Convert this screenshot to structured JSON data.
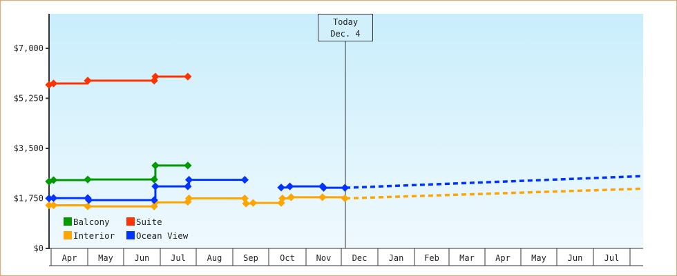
{
  "chart_data": {
    "type": "line",
    "title": "",
    "xlabel": "",
    "ylabel": "",
    "ylim": [
      0,
      8200
    ],
    "y_ticks": [
      "$0",
      "$1,750",
      "$3,500",
      "$5,250",
      "$7,000"
    ],
    "y_tick_values": [
      0,
      1750,
      3500,
      5250,
      7000
    ],
    "x_tick_labels": [
      "Apr",
      "May",
      "Jun",
      "Jul",
      "Aug",
      "Sep",
      "Oct",
      "Nov",
      "Dec",
      "Jan",
      "Feb",
      "Mar",
      "Apr",
      "May",
      "Jun",
      "Jul"
    ],
    "grid": false,
    "legend_position": "bottom-left inside",
    "annotation": {
      "label_line1": "Today",
      "label_line2": "Dec. 4"
    },
    "series": [
      {
        "name": "Balcony",
        "color": "#009900",
        "points": [
          {
            "x": "Mar 31",
            "y": 2340
          },
          {
            "x": "Apr 3",
            "y": 2390
          },
          {
            "x": "May 1",
            "y": 2410
          },
          {
            "x": "Jun 26",
            "y": 2410
          },
          {
            "x": "Jun 27",
            "y": 2900
          },
          {
            "x": "Jul 24",
            "y": 2900
          }
        ],
        "projected": []
      },
      {
        "name": "Suite",
        "color": "#ff3300",
        "points": [
          {
            "x": "Mar 31",
            "y": 5720
          },
          {
            "x": "Apr 3",
            "y": 5770
          },
          {
            "x": "May 1",
            "y": 5870
          },
          {
            "x": "Jun 26",
            "y": 5870
          },
          {
            "x": "Jun 27",
            "y": 6010
          },
          {
            "x": "Jul 24",
            "y": 6010
          }
        ],
        "projected": []
      },
      {
        "name": "Interior",
        "color": "#ffa500",
        "points": [
          {
            "x": "Mar 31",
            "y": 1510
          },
          {
            "x": "Apr 3",
            "y": 1510
          },
          {
            "x": "May 1",
            "y": 1470
          },
          {
            "x": "Jun 26",
            "y": 1470
          },
          {
            "x": "Jun 27",
            "y": 1610
          },
          {
            "x": "Jul 24",
            "y": 1630
          },
          {
            "x": "Jul 25",
            "y": 1750
          },
          {
            "x": "Sep 11",
            "y": 1750
          },
          {
            "x": "Sep 12",
            "y": 1570
          },
          {
            "x": "Sep 18",
            "y": 1590
          },
          {
            "x": "Oct 11",
            "y": 1590
          },
          {
            "x": "Oct 12",
            "y": 1750
          },
          {
            "x": "Oct 19",
            "y": 1790
          },
          {
            "x": "Nov 15",
            "y": 1790
          },
          {
            "x": "Dec 4",
            "y": 1750
          }
        ],
        "projected": [
          {
            "x": "Dec 4",
            "y": 1750
          },
          {
            "x": "Aug 1",
            "y": 2090
          }
        ]
      },
      {
        "name": "Ocean View",
        "color": "#0033ff",
        "points": [
          {
            "x": "Mar 31",
            "y": 1750
          },
          {
            "x": "Apr 3",
            "y": 1760
          },
          {
            "x": "May 1",
            "y": 1760
          },
          {
            "x": "May 2",
            "y": 1690
          },
          {
            "x": "Jun 26",
            "y": 1690
          },
          {
            "x": "Jun 27",
            "y": 2170
          },
          {
            "x": "Jul 24",
            "y": 2170
          },
          {
            "x": "Jul 25",
            "y": 2400
          },
          {
            "x": "Sep 11",
            "y": 2400
          },
          {
            "x": "Oct 11",
            "y": 2130
          },
          {
            "x": "Oct 18",
            "y": 2170
          },
          {
            "x": "Nov 15",
            "y": 2170
          },
          {
            "x": "Nov 16",
            "y": 2120
          },
          {
            "x": "Dec 4",
            "y": 2120
          }
        ],
        "projected": [
          {
            "x": "Dec 4",
            "y": 2120
          },
          {
            "x": "Aug 1",
            "y": 2530
          }
        ]
      }
    ]
  },
  "legend": {
    "items": [
      {
        "label": "Balcony",
        "color": "#009900"
      },
      {
        "label": "Suite",
        "color": "#ff3300"
      },
      {
        "label": "Interior",
        "color": "#ffa500"
      },
      {
        "label": "Ocean View",
        "color": "#0033ff"
      }
    ]
  },
  "today_marker": {
    "line1": "Today",
    "line2": "Dec. 4"
  }
}
